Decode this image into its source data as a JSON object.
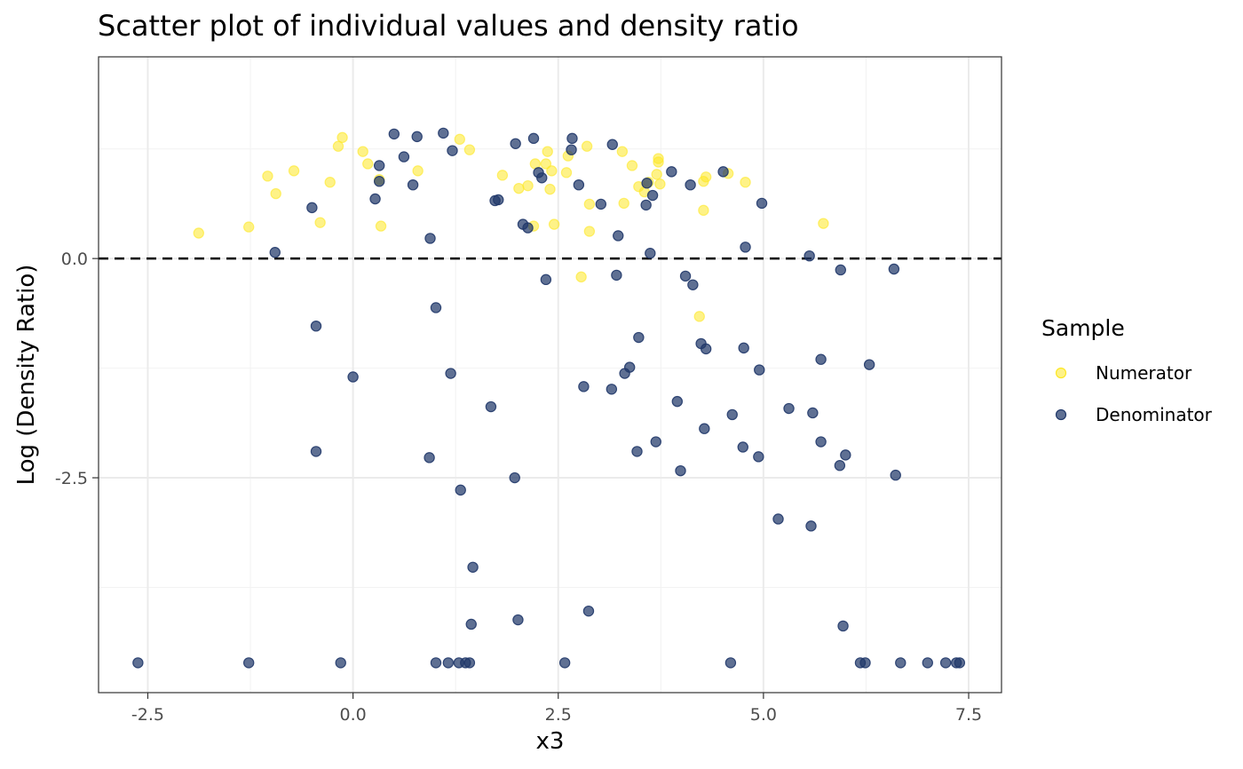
{
  "chart_data": {
    "type": "scatter",
    "title": "Scatter plot of individual values and density ratio",
    "xlabel": "x3",
    "ylabel": "Log (Density Ratio)",
    "xlim": [
      -3.1,
      7.9
    ],
    "ylim": [
      -4.95,
      2.3
    ],
    "xticks": [
      -2.5,
      0,
      2.5,
      5,
      7.5
    ],
    "xtick_labels": [
      "-2.5",
      "0.0",
      "2.5",
      "5.0",
      "7.5"
    ],
    "yticks": [
      0,
      -2.5
    ],
    "ytick_labels": [
      "0.0",
      "-2.5"
    ],
    "grid": true,
    "reference_line": {
      "y": 0,
      "style": "dashed",
      "color": "#000000"
    },
    "legend": {
      "title": "Sample",
      "position": "right"
    },
    "series": [
      {
        "name": "Numerator",
        "color": "#FDE725",
        "points": [
          [
            -1.88,
            0.29
          ],
          [
            -1.27,
            0.36
          ],
          [
            -1.04,
            0.94
          ],
          [
            -0.94,
            0.74
          ],
          [
            -0.72,
            1.0
          ],
          [
            -0.4,
            0.41
          ],
          [
            -0.28,
            0.87
          ],
          [
            -0.18,
            1.28
          ],
          [
            -0.13,
            1.38
          ],
          [
            0.12,
            1.22
          ],
          [
            0.18,
            1.08
          ],
          [
            0.32,
            0.9
          ],
          [
            0.34,
            0.37
          ],
          [
            0.79,
            1.0
          ],
          [
            1.3,
            1.36
          ],
          [
            1.42,
            1.24
          ],
          [
            1.82,
            0.95
          ],
          [
            2.02,
            0.8
          ],
          [
            2.13,
            0.83
          ],
          [
            2.2,
            0.37
          ],
          [
            2.22,
            1.08
          ],
          [
            2.35,
            1.08
          ],
          [
            2.37,
            1.22
          ],
          [
            2.42,
            1.0
          ],
          [
            2.4,
            0.79
          ],
          [
            2.45,
            0.39
          ],
          [
            2.6,
            0.98
          ],
          [
            2.62,
            1.17
          ],
          [
            2.78,
            -0.21
          ],
          [
            2.85,
            1.28
          ],
          [
            2.88,
            0.62
          ],
          [
            2.88,
            0.31
          ],
          [
            3.28,
            1.22
          ],
          [
            3.3,
            0.63
          ],
          [
            3.4,
            1.06
          ],
          [
            3.48,
            0.82
          ],
          [
            3.55,
            0.76
          ],
          [
            3.6,
            0.87
          ],
          [
            3.7,
            0.96
          ],
          [
            3.72,
            1.1
          ],
          [
            3.72,
            1.14
          ],
          [
            3.74,
            0.85
          ],
          [
            4.22,
            -0.66
          ],
          [
            4.27,
            0.88
          ],
          [
            4.3,
            0.93
          ],
          [
            4.27,
            0.55
          ],
          [
            4.57,
            0.97
          ],
          [
            4.78,
            0.87
          ],
          [
            5.73,
            0.4
          ]
        ]
      },
      {
        "name": "Denominator",
        "color": "#21396A",
        "points": [
          [
            -2.62,
            -4.61
          ],
          [
            -1.27,
            -4.61
          ],
          [
            -0.95,
            0.07
          ],
          [
            -0.5,
            0.58
          ],
          [
            -0.45,
            -0.77
          ],
          [
            -0.45,
            -2.2
          ],
          [
            -0.15,
            -4.61
          ],
          [
            0.0,
            -1.35
          ],
          [
            0.27,
            0.68
          ],
          [
            0.32,
            1.06
          ],
          [
            0.32,
            0.88
          ],
          [
            0.5,
            1.42
          ],
          [
            0.62,
            1.16
          ],
          [
            0.73,
            0.84
          ],
          [
            0.78,
            1.39
          ],
          [
            0.93,
            -2.27
          ],
          [
            0.94,
            0.23
          ],
          [
            1.01,
            -0.56
          ],
          [
            1.01,
            -4.61
          ],
          [
            1.1,
            1.43
          ],
          [
            1.16,
            -4.61
          ],
          [
            1.19,
            -1.31
          ],
          [
            1.21,
            1.23
          ],
          [
            1.29,
            -4.61
          ],
          [
            1.31,
            -2.64
          ],
          [
            1.37,
            -4.61
          ],
          [
            1.42,
            -4.61
          ],
          [
            1.44,
            -4.17
          ],
          [
            1.46,
            -3.52
          ],
          [
            1.68,
            -1.69
          ],
          [
            1.73,
            0.66
          ],
          [
            1.77,
            0.67
          ],
          [
            1.97,
            -2.5
          ],
          [
            1.98,
            1.31
          ],
          [
            2.01,
            -4.12
          ],
          [
            2.07,
            0.39
          ],
          [
            2.13,
            0.35
          ],
          [
            2.2,
            1.37
          ],
          [
            2.26,
            0.98
          ],
          [
            2.3,
            0.92
          ],
          [
            2.35,
            -0.24
          ],
          [
            2.58,
            -4.61
          ],
          [
            2.66,
            1.24
          ],
          [
            2.67,
            1.37
          ],
          [
            2.75,
            0.84
          ],
          [
            2.81,
            -1.46
          ],
          [
            2.87,
            -4.02
          ],
          [
            3.02,
            0.62
          ],
          [
            3.15,
            -1.49
          ],
          [
            3.16,
            1.3
          ],
          [
            3.21,
            -0.19
          ],
          [
            3.23,
            0.26
          ],
          [
            3.31,
            -1.31
          ],
          [
            3.37,
            -1.24
          ],
          [
            3.46,
            -2.2
          ],
          [
            3.48,
            -0.9
          ],
          [
            3.57,
            0.61
          ],
          [
            3.58,
            0.86
          ],
          [
            3.62,
            0.06
          ],
          [
            3.65,
            0.72
          ],
          [
            3.69,
            -2.09
          ],
          [
            3.88,
            0.99
          ],
          [
            3.95,
            -1.63
          ],
          [
            3.99,
            -2.42
          ],
          [
            4.05,
            -0.2
          ],
          [
            4.11,
            0.84
          ],
          [
            4.14,
            -0.3
          ],
          [
            4.24,
            -0.97
          ],
          [
            4.28,
            -1.94
          ],
          [
            4.3,
            -1.03
          ],
          [
            4.51,
            0.99
          ],
          [
            4.6,
            -4.61
          ],
          [
            4.62,
            -1.78
          ],
          [
            4.75,
            -2.15
          ],
          [
            4.76,
            -1.02
          ],
          [
            4.78,
            0.13
          ],
          [
            4.94,
            -2.26
          ],
          [
            4.95,
            -1.27
          ],
          [
            4.98,
            0.63
          ],
          [
            5.18,
            -2.97
          ],
          [
            5.31,
            -1.71
          ],
          [
            5.56,
            0.03
          ],
          [
            5.58,
            -3.05
          ],
          [
            5.6,
            -1.76
          ],
          [
            5.93,
            -2.36
          ],
          [
            5.94,
            -0.13
          ],
          [
            5.97,
            -4.19
          ],
          [
            5.7,
            -1.15
          ],
          [
            5.7,
            -2.09
          ],
          [
            6.0,
            -2.24
          ],
          [
            6.18,
            -4.61
          ],
          [
            6.24,
            -4.61
          ],
          [
            6.29,
            -1.21
          ],
          [
            6.59,
            -0.12
          ],
          [
            6.61,
            -2.47
          ],
          [
            6.67,
            -4.61
          ],
          [
            7.0,
            -4.61
          ],
          [
            7.22,
            -4.61
          ],
          [
            7.35,
            -4.61
          ],
          [
            7.39,
            -4.61
          ]
        ]
      }
    ]
  }
}
